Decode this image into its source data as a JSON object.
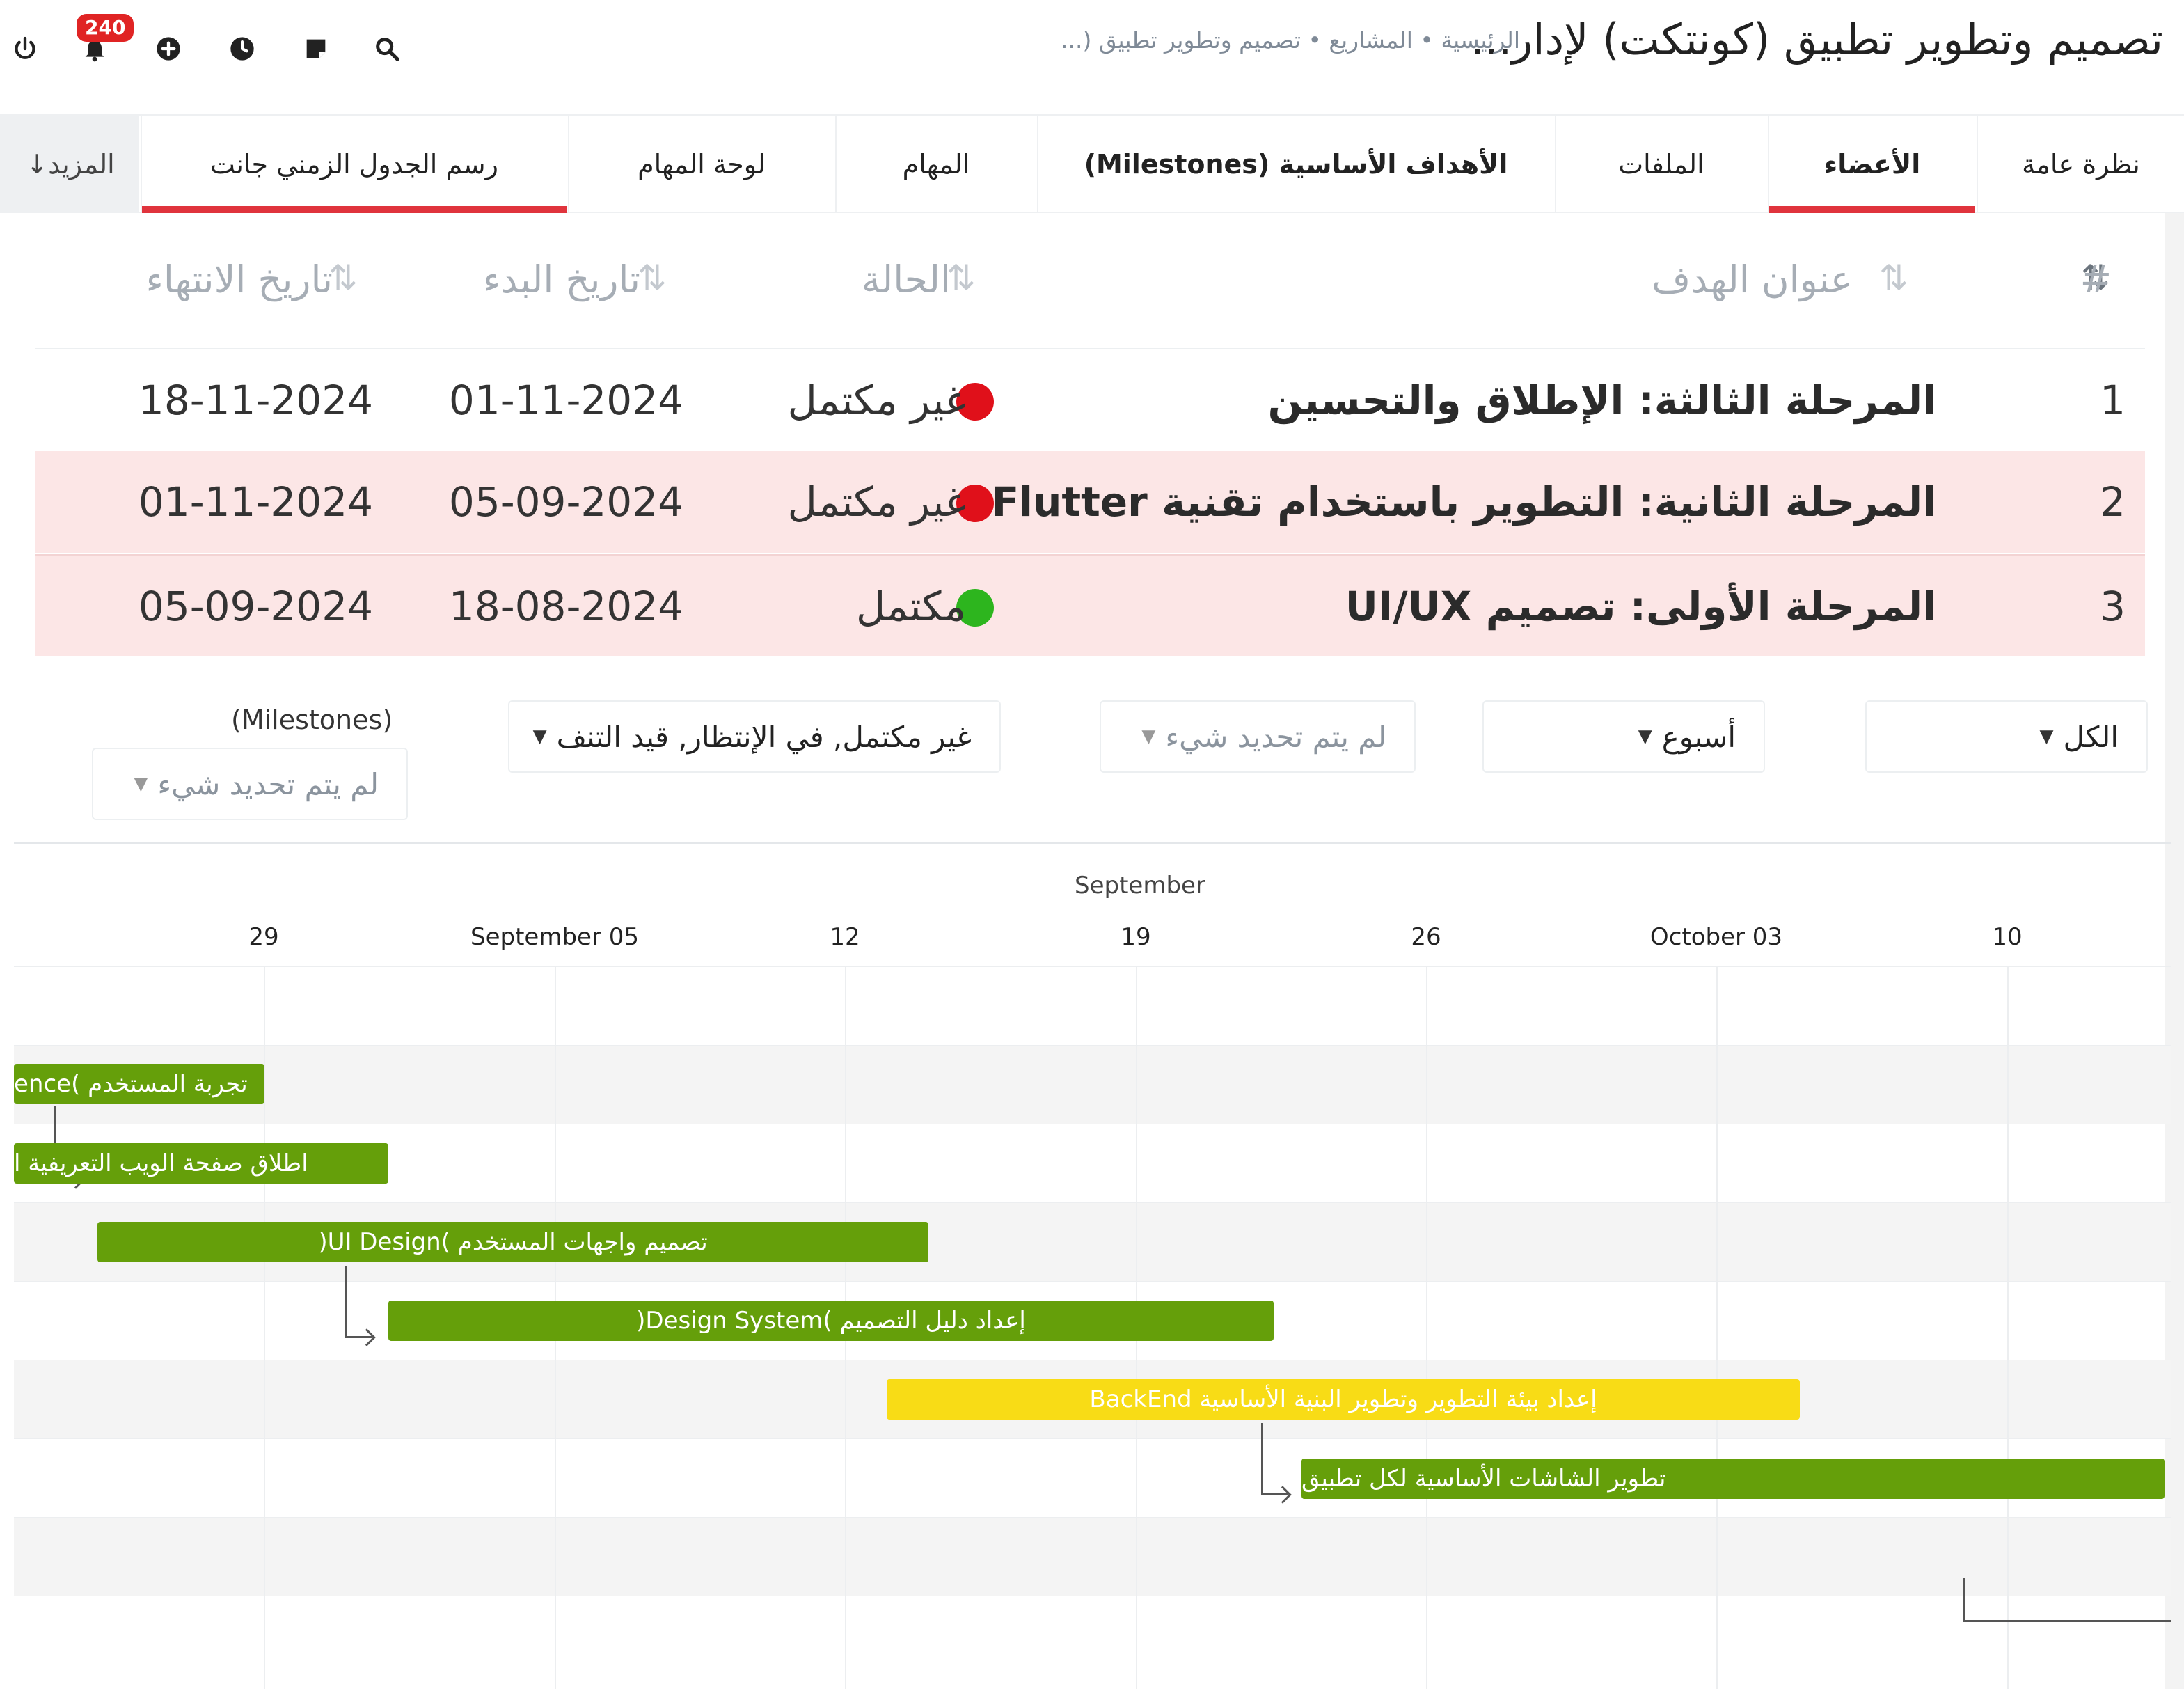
{
  "header": {
    "title": "تصميم وتطوير تطبيق (كونتكت) لإدار...",
    "breadcrumb": "الرئيسية • المشاريع • تصميم وتطوير تطبيق (...",
    "notification_count": "240"
  },
  "icons": [
    "power-icon",
    "bell-icon",
    "plus-circle-icon",
    "clock-icon",
    "note-icon",
    "search-icon"
  ],
  "tabs": [
    {
      "label": "نظرة عامة",
      "active": false
    },
    {
      "label": "الأعضاء",
      "active": true
    },
    {
      "label": "الملفات",
      "active": false
    },
    {
      "label": "الأهداف الأساسية (Milestones)",
      "active": false
    },
    {
      "label": "المهام",
      "active": false
    },
    {
      "label": "لوحة المهام",
      "active": false
    },
    {
      "label": "رسم الجدول الزمني جانت",
      "active": true
    },
    {
      "label": "المزيد↓",
      "active": false
    }
  ],
  "milestones": {
    "headers": {
      "num": "#",
      "title": "عنوان الهدف",
      "status": "الحالة",
      "start": "تاريخ البدء",
      "end": "تاريخ الانتهاء"
    },
    "rows": [
      {
        "num": "1",
        "title": "المرحلة الثالثة: الإطلاق والتحسين",
        "status": "غير مكتمل",
        "status_color": "#e0101a",
        "start": "01-11-2024",
        "end": "18-11-2024",
        "highlight": false
      },
      {
        "num": "2",
        "title": "المرحلة الثانية: التطوير باستخدام تقنية Flutter",
        "status": "غير مكتمل",
        "status_color": "#e0101a",
        "start": "05-09-2024",
        "end": "01-11-2024",
        "highlight": true
      },
      {
        "num": "3",
        "title": "المرحلة الأولى: تصميم UI/UX",
        "status": "مكتمل",
        "status_color": "#2db51e",
        "start": "18-08-2024",
        "end": "05-09-2024",
        "highlight": true
      }
    ]
  },
  "filters": {
    "all": "الكل",
    "week": "أسبوع",
    "none1": "لم يتم تحديد شيء",
    "status": "غير مكتمل, في الإنتظار, قيد التنف",
    "milestone_label": "(Milestones)",
    "none2": "لم يتم تحديد شيء"
  },
  "gantt": {
    "month": "September",
    "ticks": [
      "29",
      "September 05",
      "12",
      "19",
      "26",
      "October 03",
      "10"
    ],
    "tasks": [
      {
        "label": "تجربة المستخدم )ence",
        "color": "green"
      },
      {
        "label": "اطلاق صفحة الويب التعريفية ا",
        "color": "green"
      },
      {
        "label": "تصميم واجهات المستخدم )UI Design(",
        "color": "green"
      },
      {
        "label": "إعداد دليل التصميم )Design System(",
        "color": "green"
      },
      {
        "label": "إعداد بيئة التطوير وتطوير البنية الأساسية BackEnd",
        "color": "yellow"
      },
      {
        "label": "تطوير الشاشات الأساسية لكل تطبيق",
        "color": "green"
      }
    ]
  }
}
